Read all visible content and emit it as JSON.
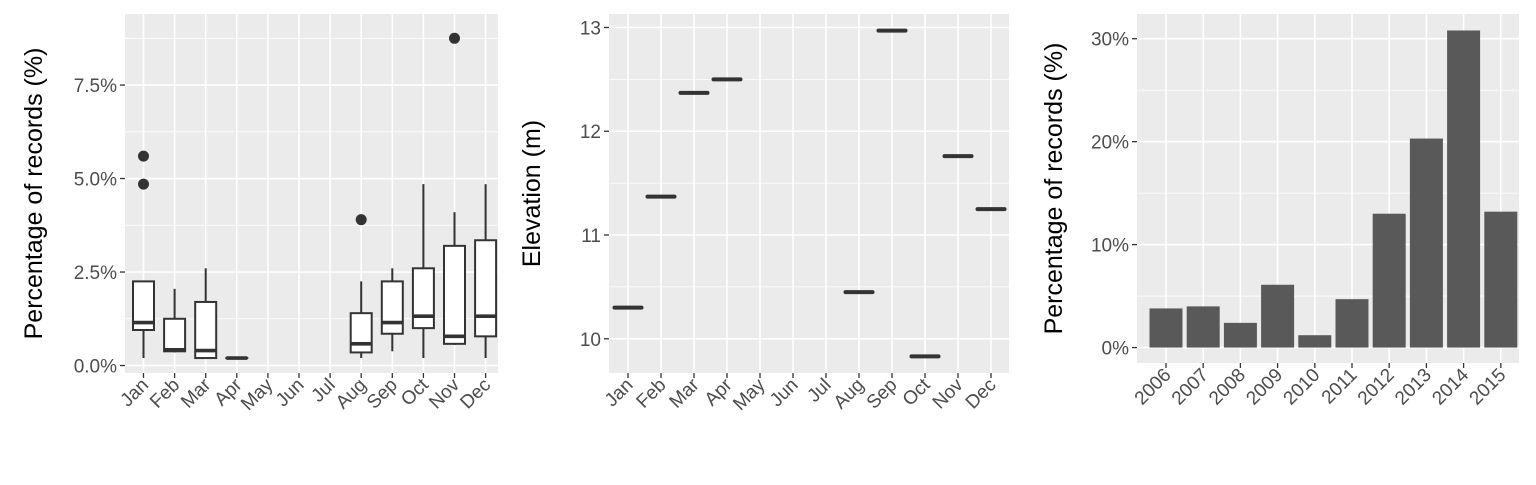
{
  "colors": {
    "panel_background": "#ebebeb",
    "grid": "#ffffff",
    "bar_fill": "#595959",
    "ink": "#333333",
    "tick_text": "#4d4d4d",
    "title_text": "#000000"
  },
  "chart_data": [
    {
      "type": "box",
      "title": "",
      "xlabel": "",
      "ylabel": "Percentage of records (%)",
      "ylim": [
        -0.2,
        9.4
      ],
      "yticks": [
        0,
        2.5,
        5,
        7.5
      ],
      "ytick_labels": [
        "0.0%",
        "2.5%",
        "5.0%",
        "7.5%"
      ],
      "grid": true,
      "categories": [
        "Jan",
        "Feb",
        "Mar",
        "Apr",
        "May",
        "Jun",
        "Jul",
        "Aug",
        "Sep",
        "Oct",
        "Nov",
        "Dec"
      ],
      "boxes": [
        {
          "month": "Jan",
          "whisker_low": 0.2,
          "q1": 0.95,
          "median": 1.15,
          "q3": 2.25,
          "whisker_high": 2.25,
          "outliers": [
            4.85,
            5.6
          ]
        },
        {
          "month": "Feb",
          "whisker_low": 0.35,
          "q1": 0.38,
          "median": 0.42,
          "q3": 1.25,
          "whisker_high": 2.05,
          "outliers": []
        },
        {
          "month": "Mar",
          "whisker_low": 0.18,
          "q1": 0.2,
          "median": 0.4,
          "q3": 1.7,
          "whisker_high": 2.6,
          "outliers": []
        },
        {
          "month": "Apr",
          "whisker_low": 0.2,
          "q1": 0.2,
          "median": 0.2,
          "q3": 0.2,
          "whisker_high": 0.2,
          "outliers": []
        },
        {
          "month": "Aug",
          "whisker_low": 0.2,
          "q1": 0.35,
          "median": 0.58,
          "q3": 1.4,
          "whisker_high": 2.25,
          "outliers": [
            3.9
          ]
        },
        {
          "month": "Sep",
          "whisker_low": 0.38,
          "q1": 0.85,
          "median": 1.15,
          "q3": 2.25,
          "whisker_high": 2.6,
          "outliers": []
        },
        {
          "month": "Oct",
          "whisker_low": 0.2,
          "q1": 1.0,
          "median": 1.32,
          "q3": 2.6,
          "whisker_high": 4.85,
          "outliers": []
        },
        {
          "month": "Nov",
          "whisker_low": 0.55,
          "q1": 0.58,
          "median": 0.78,
          "q3": 3.2,
          "whisker_high": 4.1,
          "outliers": [
            8.75
          ]
        },
        {
          "month": "Dec",
          "whisker_low": 0.2,
          "q1": 0.78,
          "median": 1.32,
          "q3": 3.35,
          "whisker_high": 4.85,
          "outliers": []
        }
      ]
    },
    {
      "type": "box",
      "title": "",
      "xlabel": "",
      "ylabel": "Elevation (m)",
      "ylim": [
        9.67,
        13.13
      ],
      "yticks": [
        10,
        11,
        12,
        13
      ],
      "ytick_labels": [
        "10",
        "11",
        "12",
        "13"
      ],
      "grid": true,
      "categories": [
        "Jan",
        "Feb",
        "Mar",
        "Apr",
        "May",
        "Jun",
        "Jul",
        "Aug",
        "Sep",
        "Oct",
        "Nov",
        "Dec"
      ],
      "values": [
        {
          "month": "Jan",
          "value": 10.3
        },
        {
          "month": "Feb",
          "value": 11.37
        },
        {
          "month": "Mar",
          "value": 12.37
        },
        {
          "month": "Apr",
          "value": 12.5
        },
        {
          "month": "Aug",
          "value": 10.45
        },
        {
          "month": "Sep",
          "value": 12.97
        },
        {
          "month": "Oct",
          "value": 9.83
        },
        {
          "month": "Nov",
          "value": 11.76
        },
        {
          "month": "Dec",
          "value": 11.25
        }
      ]
    },
    {
      "type": "bar",
      "title": "",
      "xlabel": "",
      "ylabel": "Percentage of records (%)",
      "ylim": [
        -1.5,
        32.4
      ],
      "yticks": [
        0,
        10,
        20,
        30
      ],
      "ytick_labels": [
        "0%",
        "10%",
        "20%",
        "30%"
      ],
      "grid": true,
      "categories": [
        "2006",
        "2007",
        "2008",
        "2009",
        "2010",
        "2011",
        "2012",
        "2013",
        "2014",
        "2015"
      ],
      "values": [
        3.8,
        4.0,
        2.4,
        6.1,
        1.2,
        4.7,
        13.0,
        20.3,
        30.8,
        13.2
      ]
    }
  ]
}
